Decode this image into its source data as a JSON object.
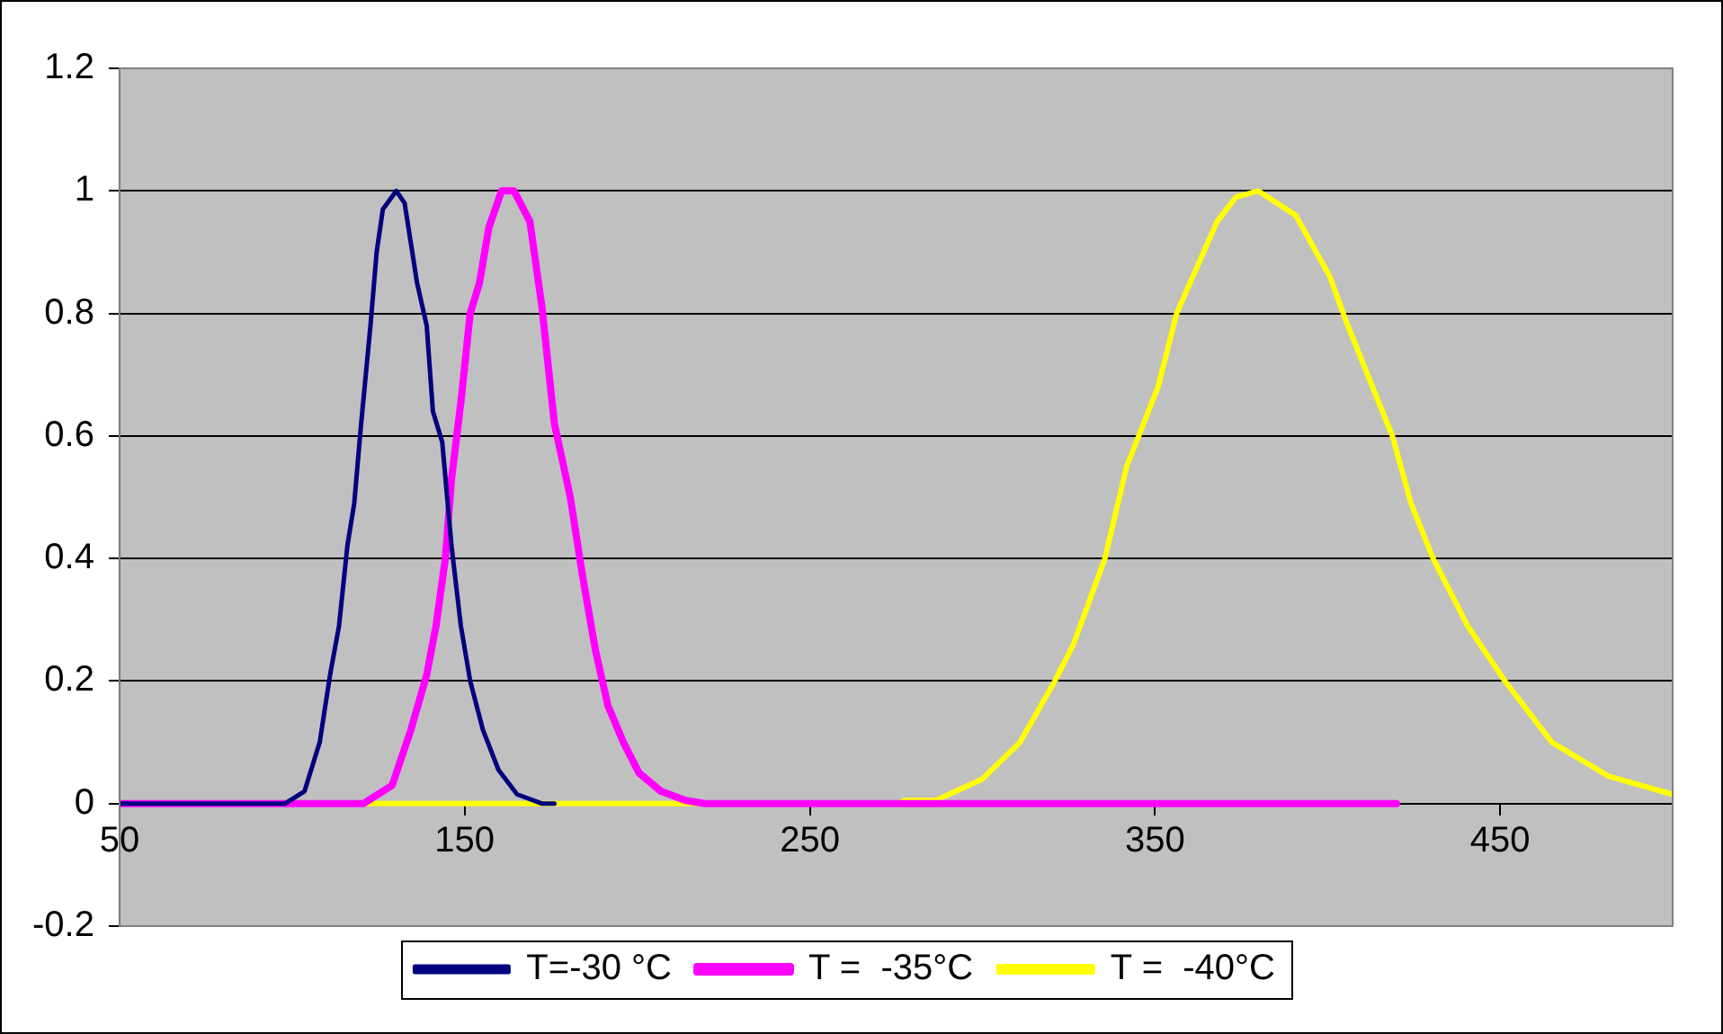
{
  "chart_data": {
    "type": "line",
    "xlim": [
      50,
      500
    ],
    "xticks": [
      50,
      150,
      250,
      350,
      450
    ],
    "ylim": [
      -0.2,
      1.2
    ],
    "yticks": [
      -0.2,
      0,
      0.2,
      0.4,
      0.6,
      0.8,
      1,
      1.2
    ],
    "grid": "y",
    "legend": "bottom",
    "marker": "none",
    "line_style": "solid",
    "series": [
      {
        "name": "T=-30 °C",
        "color": "#000080",
        "x": [
          50,
          98,
          103.6,
          108,
          111,
          113.6,
          116,
          118,
          120,
          122.7,
          124.5,
          126.3,
          130.2,
          132.6,
          136.2,
          139,
          140.8,
          143.5,
          146.2,
          148.9,
          151.6,
          155.3,
          159.8,
          165.2,
          172.3,
          176
        ],
        "values": [
          0,
          0,
          0.02,
          0.1,
          0.21,
          0.29,
          0.42,
          0.49,
          0.62,
          0.78,
          0.9,
          0.97,
          1,
          0.98,
          0.85,
          0.78,
          0.64,
          0.59,
          0.42,
          0.29,
          0.2,
          0.12,
          0.055,
          0.015,
          0,
          0
        ]
      },
      {
        "name": "T =  -35°C",
        "color": "#ff00ff",
        "x": [
          50,
          120.7,
          129,
          134.4,
          139,
          141.7,
          144.4,
          146.2,
          149,
          151.6,
          154.3,
          157,
          160.7,
          164.3,
          168.9,
          172.4,
          176,
          180.6,
          184.2,
          187.9,
          191.5,
          196,
          200.5,
          206.9,
          214,
          219.6,
          420
        ],
        "values": [
          0,
          0,
          0.03,
          0.12,
          0.21,
          0.29,
          0.4,
          0.53,
          0.66,
          0.8,
          0.85,
          0.94,
          1,
          1,
          0.95,
          0.81,
          0.62,
          0.5,
          0.37,
          0.25,
          0.16,
          0.1,
          0.05,
          0.02,
          0.005,
          0,
          0
        ]
      },
      {
        "name": "T =  -40°C",
        "color": "#ffff00",
        "x": [
          50,
          275.5,
          277.5,
          286.5,
          300,
          310.9,
          321,
          326.4,
          335.5,
          341.8,
          350.9,
          356.3,
          368,
          373.5,
          379.9,
          390.8,
          400.7,
          405.2,
          411.6,
          418.8,
          424.2,
          430.6,
          440.6,
          451.4,
          465,
          481.3,
          500
        ],
        "values": [
          0,
          0,
          0.005,
          0.005,
          0.04,
          0.1,
          0.2,
          0.26,
          0.4,
          0.55,
          0.68,
          0.8,
          0.95,
          0.99,
          1,
          0.96,
          0.86,
          0.79,
          0.7,
          0.6,
          0.49,
          0.4,
          0.29,
          0.2,
          0.1,
          0.045,
          0.015
        ]
      }
    ]
  }
}
